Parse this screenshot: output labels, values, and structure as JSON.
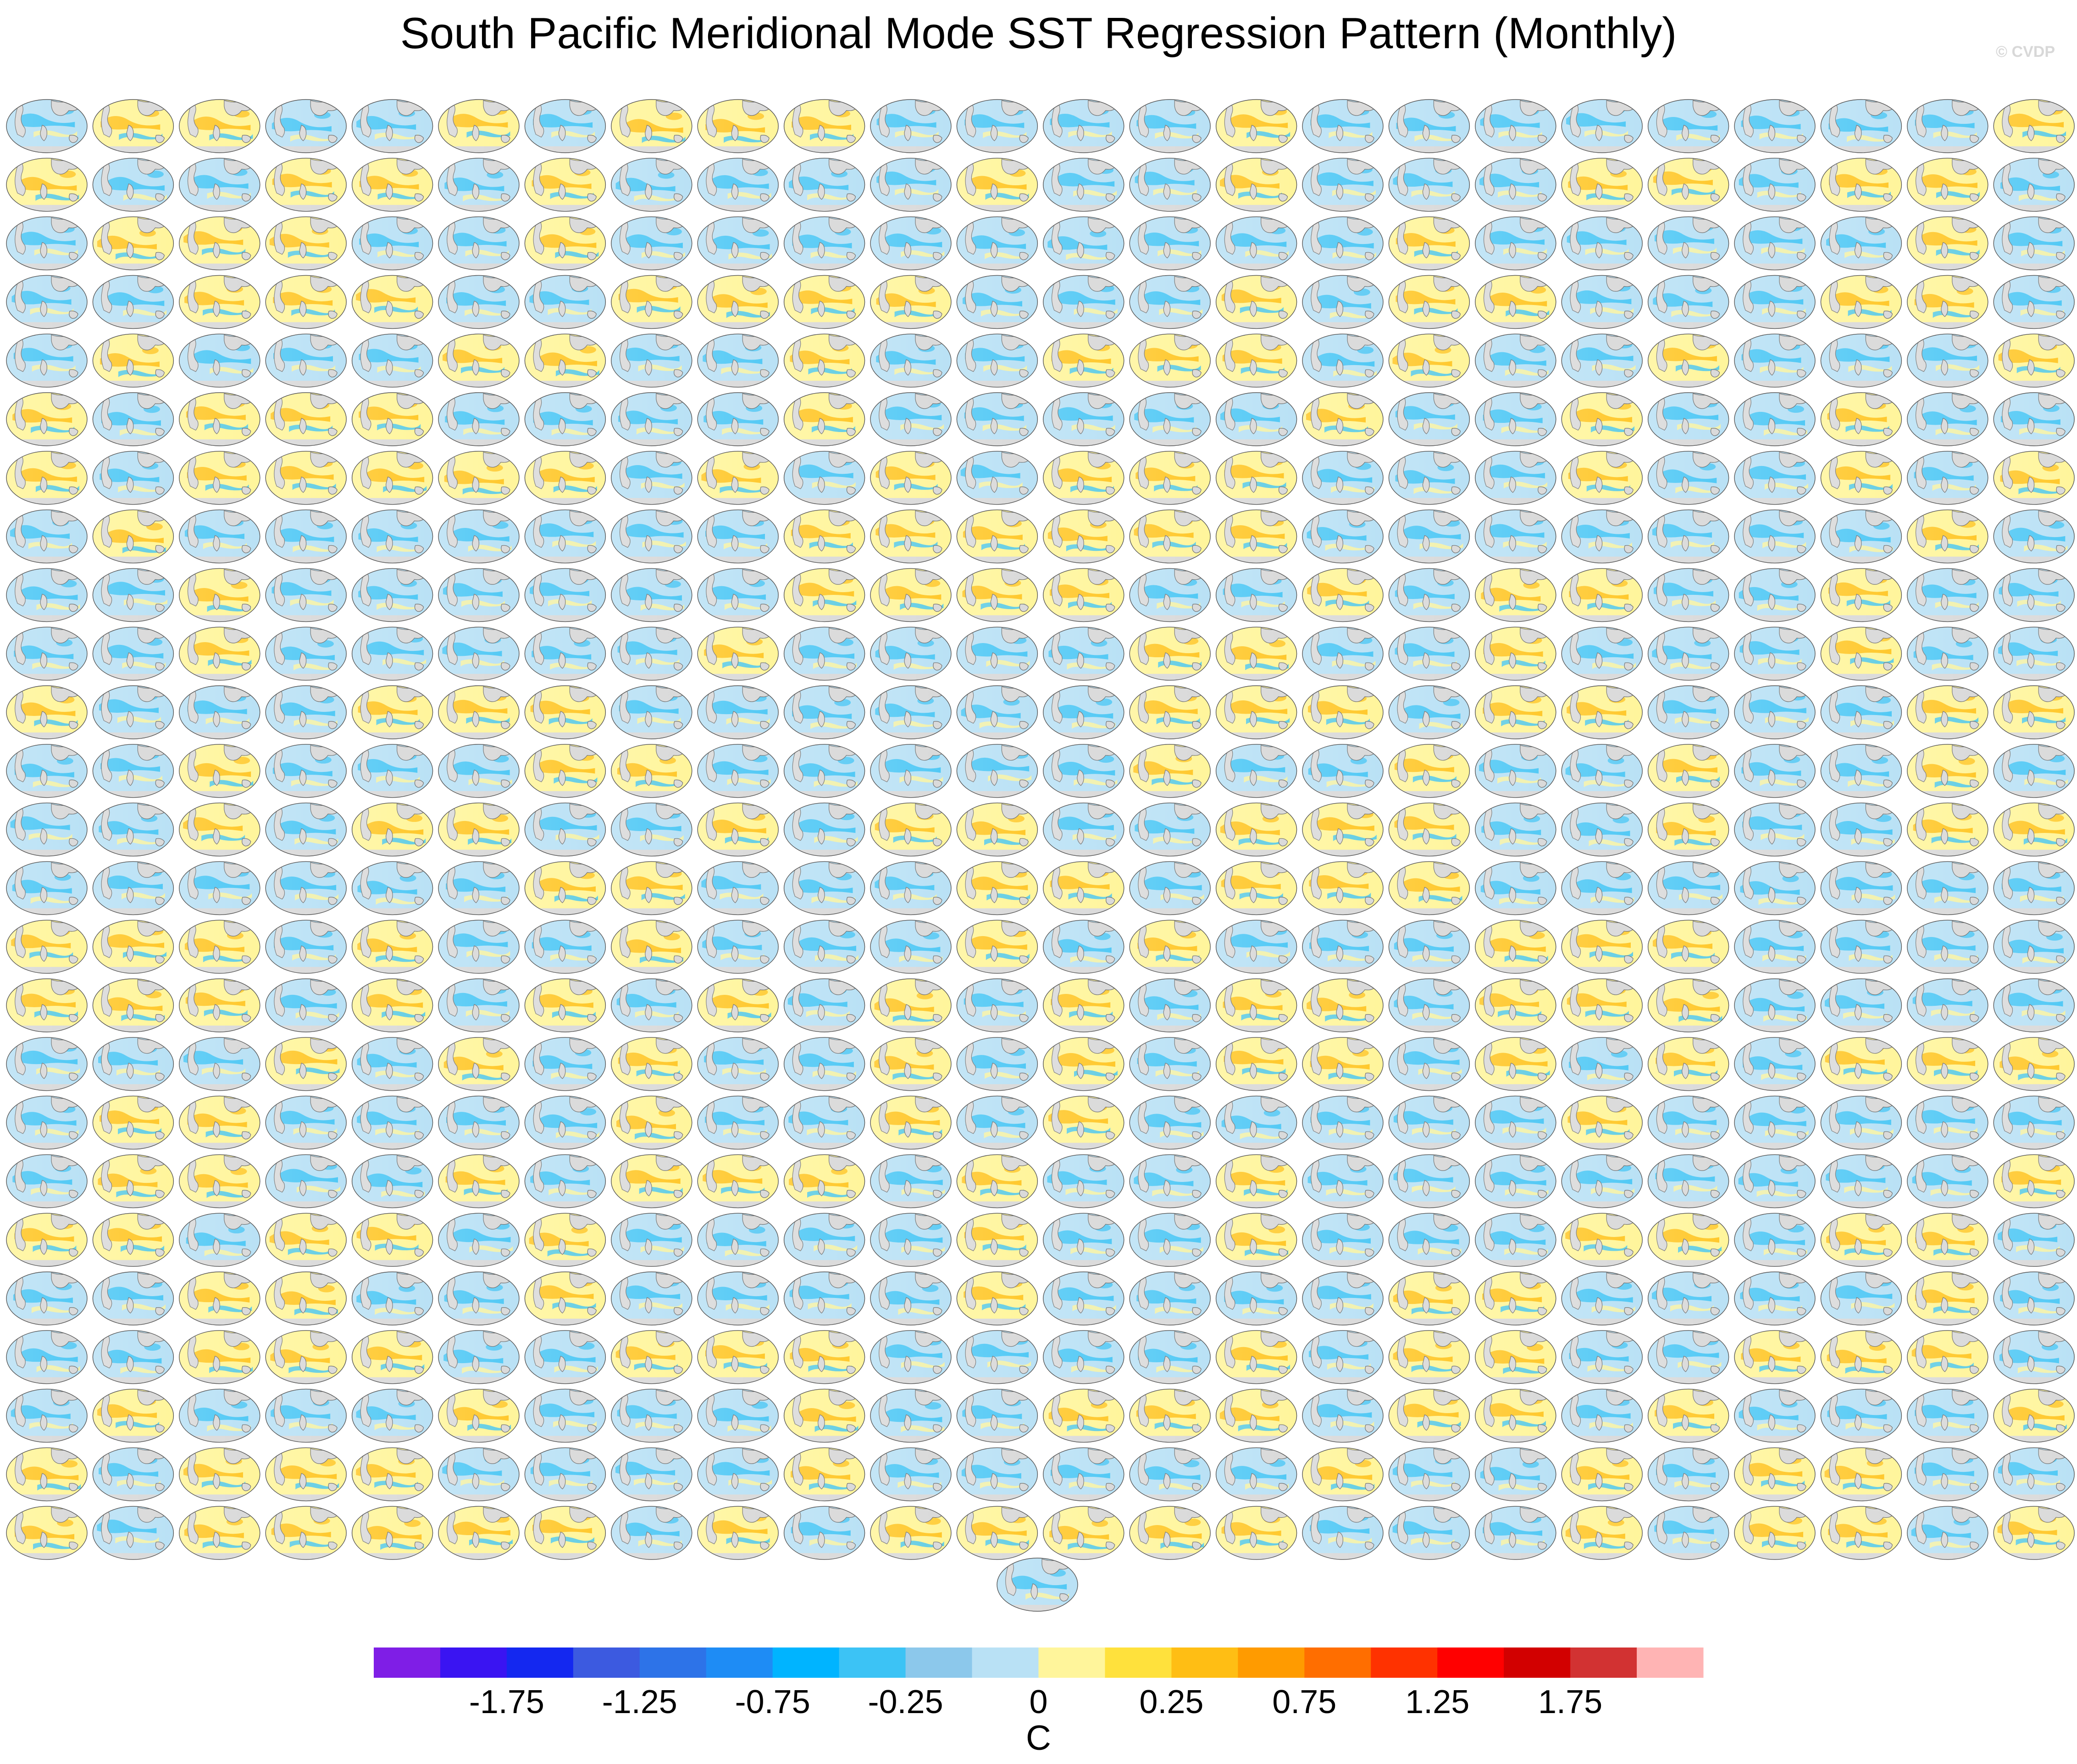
{
  "figure": {
    "title": "South Pacific Meridional Mode SST Regression Pattern (Monthly)",
    "watermark": "© CVDP"
  },
  "chart_data": {
    "type": "heatmap",
    "title": "South Pacific Meridional Mode SST Regression Pattern (Monthly)",
    "description_kind": "panel grid of global SST regression maps",
    "panel_rows": 25,
    "panel_columns": 24,
    "extra_panels_bottom_row": 1,
    "colorbar": {
      "units": "C",
      "tick_labels": [
        "-1.75",
        "-1.25",
        "-0.75",
        "-0.25",
        "0",
        "0.25",
        "0.75",
        "1.25",
        "1.75"
      ],
      "tick_values": [
        -1.75,
        -1.25,
        -0.75,
        -0.25,
        0,
        0.25,
        0.75,
        1.25,
        1.75
      ],
      "levels": [
        -2.0,
        -1.75,
        -1.5,
        -1.25,
        -1.0,
        -0.75,
        -0.5,
        -0.25,
        -0.1,
        0,
        0.1,
        0.25,
        0.5,
        0.75,
        1.0,
        1.25,
        1.5,
        1.75,
        2.0
      ],
      "colors": [
        "#7f1ee6",
        "#3a14f2",
        "#1428f0",
        "#3c5ae0",
        "#2d73e8",
        "#1e8cf5",
        "#00b4ff",
        "#3cc3f5",
        "#8cc8eb",
        "#b9e1f5",
        "#fff59b",
        "#ffe13c",
        "#ffbe14",
        "#ff9b00",
        "#ff6e00",
        "#ff3200",
        "#ff0000",
        "#d20000",
        "#d23232",
        "#ffb4b4"
      ]
    },
    "panel_colors": {
      "land": "#d9d9d9",
      "cool_ocean": "#b9e1f5",
      "cold_band": "#3cc3f5",
      "warm_ocean": "#fff59b",
      "warm_band": "#ffbe14"
    }
  }
}
